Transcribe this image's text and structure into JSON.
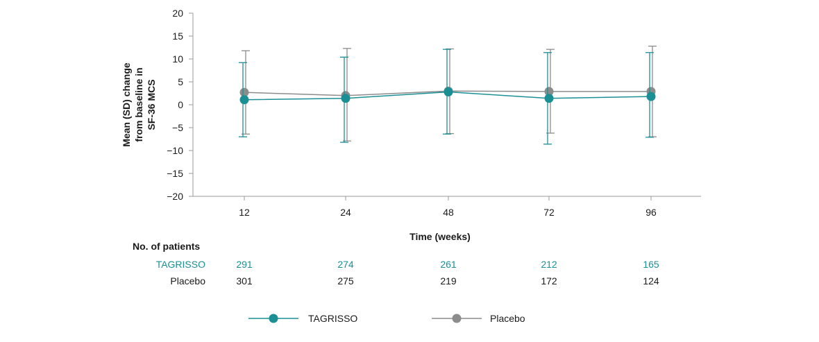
{
  "chart_data": {
    "type": "line",
    "title": "",
    "xlabel": "Time (weeks)",
    "ylabel_lines": [
      "Mean (SD) change",
      "from baseline in",
      "SF-36 MCS"
    ],
    "categories": [
      "12",
      "24",
      "48",
      "72",
      "96"
    ],
    "ylim": [
      -20,
      20
    ],
    "yticks": [
      20,
      15,
      10,
      5,
      0,
      -5,
      -10,
      -15,
      -20
    ],
    "ytick_labels": [
      "20",
      "15",
      "10",
      "5",
      "0",
      "−5",
      "−10",
      "−15",
      "−20"
    ],
    "grid": false,
    "legend_position": "bottom",
    "series": [
      {
        "name": "TAGRISSO",
        "color": "#1a8f94",
        "values": [
          1.1,
          1.4,
          2.8,
          1.4,
          1.8
        ],
        "err_low": [
          -7.0,
          -8.2,
          -6.4,
          -8.6,
          -7.1
        ],
        "err_high": [
          9.2,
          10.4,
          12.1,
          11.4,
          11.4
        ]
      },
      {
        "name": "Placebo",
        "color": "#8c8c8c",
        "values": [
          2.7,
          2.0,
          3.0,
          2.9,
          2.9
        ],
        "err_low": [
          -6.4,
          -7.9,
          -6.3,
          -6.2,
          -7.0
        ],
        "err_high": [
          11.8,
          12.3,
          12.2,
          12.1,
          12.8
        ]
      }
    ],
    "patients": {
      "title": "No. of patients",
      "rows": [
        {
          "label": "TAGRISSO",
          "color": "#1a8f94",
          "values": [
            "291",
            "274",
            "261",
            "212",
            "165"
          ]
        },
        {
          "label": "Placebo",
          "color": "#1a1a1a",
          "values": [
            "301",
            "275",
            "219",
            "172",
            "124"
          ]
        }
      ]
    }
  }
}
